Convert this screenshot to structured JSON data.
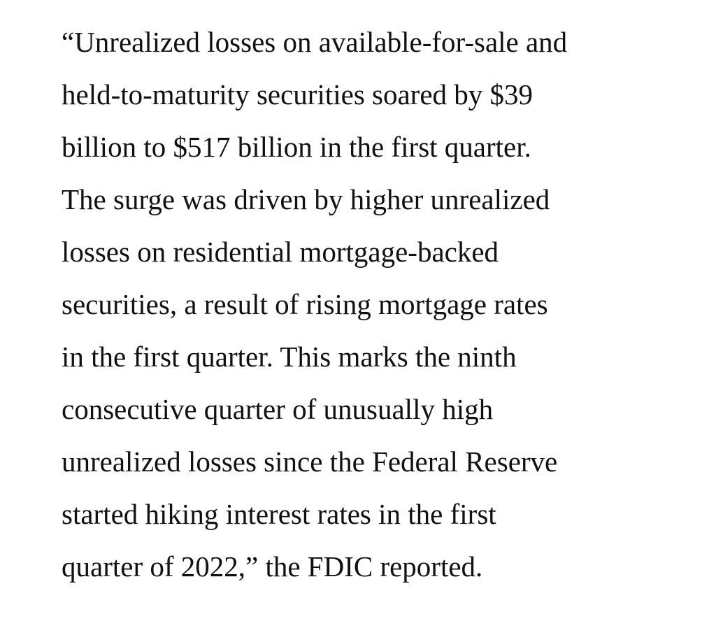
{
  "paragraph": {
    "lines": [
      "“Unrealized losses on available-for-sale and",
      "held-to-maturity securities soared by $39",
      "billion to $517 billion in the first quarter.",
      "The surge was driven by higher unrealized",
      "losses on residential mortgage-backed",
      "securities, a result of rising mortgage rates",
      "in the first quarter. This marks the ninth",
      "consecutive quarter of unusually high",
      "unrealized losses since the Federal Reserve",
      "started hiking interest rates in the first",
      "quarter of 2022,” the FDIC reported."
    ]
  }
}
